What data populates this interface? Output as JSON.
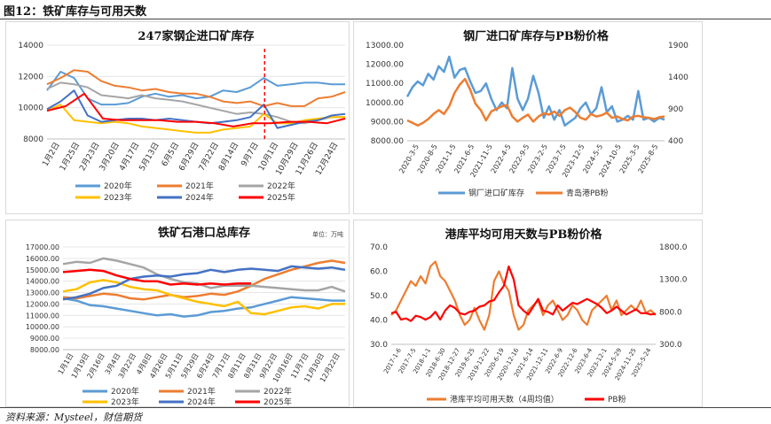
{
  "header": {
    "title": "图12：铁矿库存与可用天数"
  },
  "footer": {
    "source": "资料来源：Mysteel，财信期货"
  },
  "colors": {
    "y2020": "#5b9bd5",
    "y2021": "#ed7d31",
    "y2022": "#a5a5a5",
    "y2023": "#ffc000",
    "y2024": "#4472c4",
    "y2025": "#ff0000",
    "redline": "#ff0000"
  },
  "chart_data": [
    {
      "id": "c1",
      "type": "line",
      "title": "247家钢企进口矿库存",
      "ylim": [
        8000,
        14000
      ],
      "yticks": [
        "8000",
        "10000",
        "12000",
        "14000"
      ],
      "xticks": [
        "1月2日",
        "1月25日",
        "2月23日",
        "3月20日",
        "4月17日",
        "5月13日",
        "6月5日",
        "6月29日",
        "7月22日",
        "8月14日",
        "9月7日",
        "10月1日",
        "10月29日",
        "11月26日",
        "12月24日"
      ],
      "marker_x": 0.73,
      "series": [
        {
          "name": "2020年",
          "color": "#5b9bd5",
          "values": [
            11100,
            12300,
            11900,
            10600,
            10200,
            10200,
            10300,
            10700,
            10900,
            10700,
            10800,
            10600,
            10700,
            11100,
            11000,
            11300,
            11900,
            11400,
            11500,
            11600,
            11600,
            11500,
            11500
          ]
        },
        {
          "name": "2021年",
          "color": "#ed7d31",
          "values": [
            11500,
            11900,
            12400,
            12300,
            11700,
            11400,
            11300,
            11100,
            11200,
            11000,
            10900,
            10900,
            10700,
            10400,
            10300,
            10400,
            10100,
            10300,
            10100,
            10100,
            10600,
            10700,
            11000
          ]
        },
        {
          "name": "2022年",
          "color": "#a5a5a5",
          "values": [
            11200,
            11600,
            11500,
            11300,
            10800,
            10700,
            10600,
            10800,
            10600,
            10500,
            10400,
            10200,
            10000,
            9800,
            9600,
            9700,
            9600,
            9400,
            9100,
            9000,
            9200,
            9400,
            9400
          ]
        },
        {
          "name": "2023年",
          "color": "#ffc000",
          "values": [
            9800,
            10200,
            9200,
            9100,
            9000,
            9100,
            9000,
            8800,
            8700,
            8600,
            8500,
            8400,
            8400,
            8600,
            8700,
            8800,
            9600,
            9000,
            9000,
            9200,
            9300,
            9400,
            9400
          ]
        },
        {
          "name": "2024年",
          "color": "#4472c4",
          "values": [
            9900,
            10400,
            11100,
            9500,
            9100,
            9200,
            9300,
            9300,
            9200,
            9300,
            9200,
            9100,
            9000,
            9100,
            9200,
            9400,
            10200,
            8700,
            8900,
            9100,
            9200,
            9500,
            9600
          ]
        },
        {
          "name": "2025年",
          "color": "#ff0000",
          "values": [
            9800,
            10100,
            10900,
            9300,
            9200,
            9200,
            9200,
            9100,
            9100,
            9000,
            8800,
            9000,
            9000,
            9100,
            9100,
            9000,
            9300
          ]
        }
      ],
      "legend": [
        "2020年",
        "2021年",
        "2022年",
        "2023年",
        "2024年",
        "2025年"
      ]
    },
    {
      "id": "c2",
      "type": "line",
      "title": "钢厂进口矿库存与PB粉价格",
      "ylim_left": [
        8000,
        13000
      ],
      "ylim_right": [
        400,
        1900
      ],
      "yticks_left": [
        "8000.00",
        "9000.00",
        "10000.00",
        "11000.00",
        "12000.00",
        "13000.00"
      ],
      "yticks_right": [
        "400",
        "900",
        "1400",
        "1900"
      ],
      "xticks": [
        "2020-3-5",
        "2020-8-5",
        "2021-1-5",
        "2021-6-5",
        "2021-11-5",
        "2022-4-5",
        "2022-9-5",
        "2023-2-5",
        "2023-7-5",
        "2023-12-5",
        "2024-5-5",
        "2024-10-5",
        "2025-3-5",
        "2025-8-5"
      ],
      "series": [
        {
          "name": "钢厂进口矿库存",
          "axis": "left",
          "color": "#5b9bd5",
          "values": [
            10300,
            10800,
            11100,
            10900,
            11500,
            11200,
            11900,
            11600,
            12400,
            11300,
            11700,
            11800,
            11100,
            10500,
            10600,
            11000,
            10200,
            9600,
            10000,
            9700,
            11800,
            10200,
            9600,
            10200,
            11400,
            10500,
            9200,
            9800,
            9100,
            9600,
            8800,
            9000,
            9200,
            9700,
            10000,
            9400,
            9700,
            10800,
            9500,
            9800,
            9000,
            9100,
            9300,
            9100,
            10600,
            9100,
            9200,
            9000,
            9200,
            9100
          ]
        },
        {
          "name": "青岛港PB粉",
          "axis": "right",
          "color": "#ed7d31",
          "values": [
            720,
            680,
            640,
            680,
            740,
            820,
            880,
            820,
            940,
            1150,
            1280,
            1370,
            1200,
            980,
            880,
            720,
            860,
            900,
            940,
            960,
            780,
            700,
            760,
            810,
            700,
            780,
            830,
            810,
            860,
            790,
            880,
            920,
            850,
            760,
            730,
            820,
            780,
            800,
            840,
            760,
            780,
            740,
            720,
            780,
            790,
            770,
            760,
            740,
            770,
            780
          ]
        }
      ],
      "legend": [
        "钢厂进口矿库存",
        "青岛港PB粉"
      ]
    },
    {
      "id": "c3",
      "type": "line",
      "title": "铁矿石港口总库存",
      "unit": "单位：万吨",
      "ylim": [
        8000,
        17000
      ],
      "yticks": [
        "8000.00",
        "9000.00",
        "10000.00",
        "11000.00",
        "12000.00",
        "13000.00",
        "14000.00",
        "15000.00",
        "16000.00",
        "17000.00"
      ],
      "xticks": [
        "1月1日",
        "1月19日",
        "2月16日",
        "3月4日",
        "3月22日",
        "4月8日",
        "4月26日",
        "5月11日",
        "5月29日",
        "6月24日",
        "7月17日",
        "8月11日",
        "8月31日",
        "9月22日",
        "10月16日",
        "11月7日",
        "11月30日",
        "12月22日"
      ],
      "series": [
        {
          "name": "2020年",
          "color": "#5b9bd5",
          "values": [
            12500,
            12300,
            11900,
            11800,
            11600,
            11400,
            11200,
            11000,
            11100,
            10900,
            11000,
            11300,
            11400,
            11600,
            11700,
            12000,
            12300,
            12600,
            12500,
            12400,
            12300,
            12300
          ]
        },
        {
          "name": "2021年",
          "color": "#ed7d31",
          "values": [
            12600,
            12500,
            12700,
            12900,
            12800,
            12500,
            12400,
            12600,
            12800,
            12600,
            12700,
            12900,
            12800,
            13100,
            13600,
            14200,
            14600,
            15000,
            15300,
            15600,
            15800,
            15600
          ]
        },
        {
          "name": "2022年",
          "color": "#a5a5a5",
          "values": [
            15500,
            15700,
            15600,
            16000,
            15800,
            15500,
            15200,
            14600,
            14200,
            13900,
            13800,
            13400,
            13600,
            13600,
            13600,
            13500,
            13400,
            13300,
            13200,
            13200,
            13500,
            13100
          ]
        },
        {
          "name": "2023年",
          "color": "#ffc000",
          "values": [
            13100,
            13300,
            13900,
            14100,
            13900,
            13500,
            13300,
            13200,
            12800,
            12500,
            12200,
            12000,
            11800,
            12200,
            11200,
            11100,
            11400,
            11700,
            11800,
            11600,
            12000,
            12000
          ]
        },
        {
          "name": "2024年",
          "color": "#4472c4",
          "values": [
            12400,
            12600,
            12900,
            13400,
            13600,
            14200,
            14400,
            14500,
            14400,
            14600,
            14700,
            15000,
            14800,
            15000,
            15100,
            15000,
            14900,
            15300,
            15200,
            15100,
            15200,
            15000
          ]
        },
        {
          "name": "2025年",
          "color": "#ff0000",
          "values": [
            14800,
            14900,
            15000,
            14900,
            14500,
            14200,
            14000,
            14000,
            13700,
            13800,
            13700,
            13800,
            13700,
            13800,
            13800
          ]
        }
      ],
      "legend": [
        "2020年",
        "2021年",
        "2022年",
        "2023年",
        "2024年",
        "2025年"
      ]
    },
    {
      "id": "c4",
      "type": "line",
      "title": "港库平均可用天数与PB粉价格",
      "ylim_left": [
        30,
        70
      ],
      "ylim_right": [
        300,
        1800
      ],
      "yticks_left": [
        "30.0",
        "40.0",
        "50.0",
        "60.0",
        "70.0"
      ],
      "yticks_right": [
        "300.0",
        "800.0",
        "1300.0",
        "1800.0"
      ],
      "xticks": [
        "2017-1-6",
        "2017-7-5",
        "2018-1-1",
        "2018-6-30",
        "2018-12-27",
        "2019-6-25",
        "2019-12-22",
        "2020-6-19",
        "2020-12-16",
        "2021-6-14",
        "2021-12-11",
        "2022-6-9",
        "2022-12-6",
        "2023-6-4",
        "2023-12-1",
        "2024-5-29",
        "2024-11-25",
        "2025-5-24"
      ],
      "series": [
        {
          "name": "港库平均可用天数（4周均值）",
          "axis": "left",
          "color": "#ed7d31",
          "values": [
            42,
            44,
            48,
            52,
            56,
            54,
            58,
            55,
            62,
            64,
            58,
            56,
            52,
            48,
            42,
            38,
            40,
            45,
            40,
            36,
            42,
            56,
            60,
            55,
            52,
            42,
            36,
            38,
            44,
            46,
            48,
            42,
            46,
            48,
            44,
            40,
            42,
            46,
            44,
            40,
            38,
            44,
            46,
            48,
            50,
            44,
            48,
            42,
            44,
            46,
            44,
            48,
            43,
            44,
            42
          ]
        },
        {
          "name": "PB粉",
          "axis": "right",
          "color": "#ff0000",
          "values": [
            780,
            800,
            680,
            700,
            660,
            740,
            720,
            680,
            720,
            800,
            680,
            820,
            900,
            860,
            780,
            760,
            800,
            820,
            880,
            900,
            960,
            980,
            1100,
            1200,
            1500,
            1300,
            900,
            820,
            760,
            880,
            1000,
            820,
            800,
            760,
            900,
            820,
            880,
            940,
            920,
            960,
            1000,
            960,
            920,
            860,
            780,
            820,
            880,
            820,
            760,
            800,
            840,
            780,
            780,
            760,
            770
          ]
        }
      ],
      "legend": [
        "港库平均可用天数（4周均值）",
        "PB粉"
      ]
    }
  ]
}
